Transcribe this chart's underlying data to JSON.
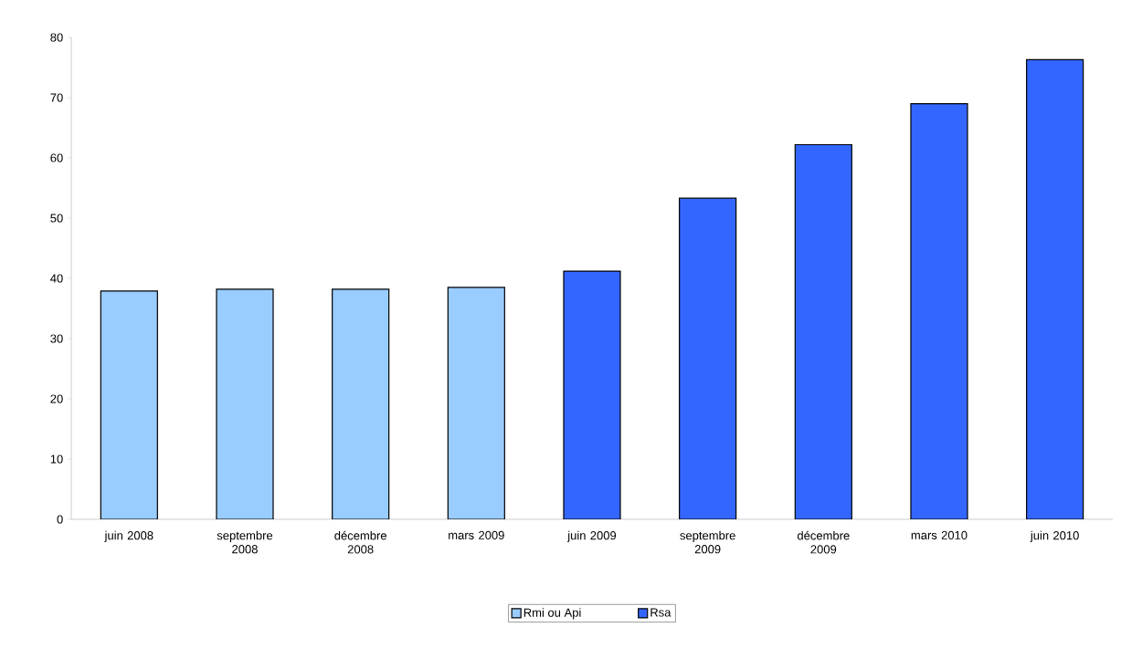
{
  "chart_data": {
    "type": "bar",
    "categories": [
      "juin 2008",
      "septembre 2008",
      "décembre 2008",
      "mars 2009",
      "juin 2009",
      "septembre 2009",
      "décembre 2009",
      "mars 2010",
      "juin 2010"
    ],
    "series": [
      {
        "name": "Rmi ou Api",
        "color": "#99ccff",
        "values": [
          37.9,
          38.2,
          38.2,
          38.5,
          null,
          null,
          null,
          null,
          null
        ]
      },
      {
        "name": "Rsa",
        "color": "#3366ff",
        "values": [
          null,
          null,
          null,
          null,
          41.2,
          53.3,
          62.2,
          69.0,
          76.3
        ]
      }
    ],
    "ylim": [
      0,
      80
    ],
    "yticks": [
      0,
      10,
      20,
      30,
      40,
      50,
      60,
      70,
      80
    ],
    "grid": false,
    "legend": "bottom"
  }
}
